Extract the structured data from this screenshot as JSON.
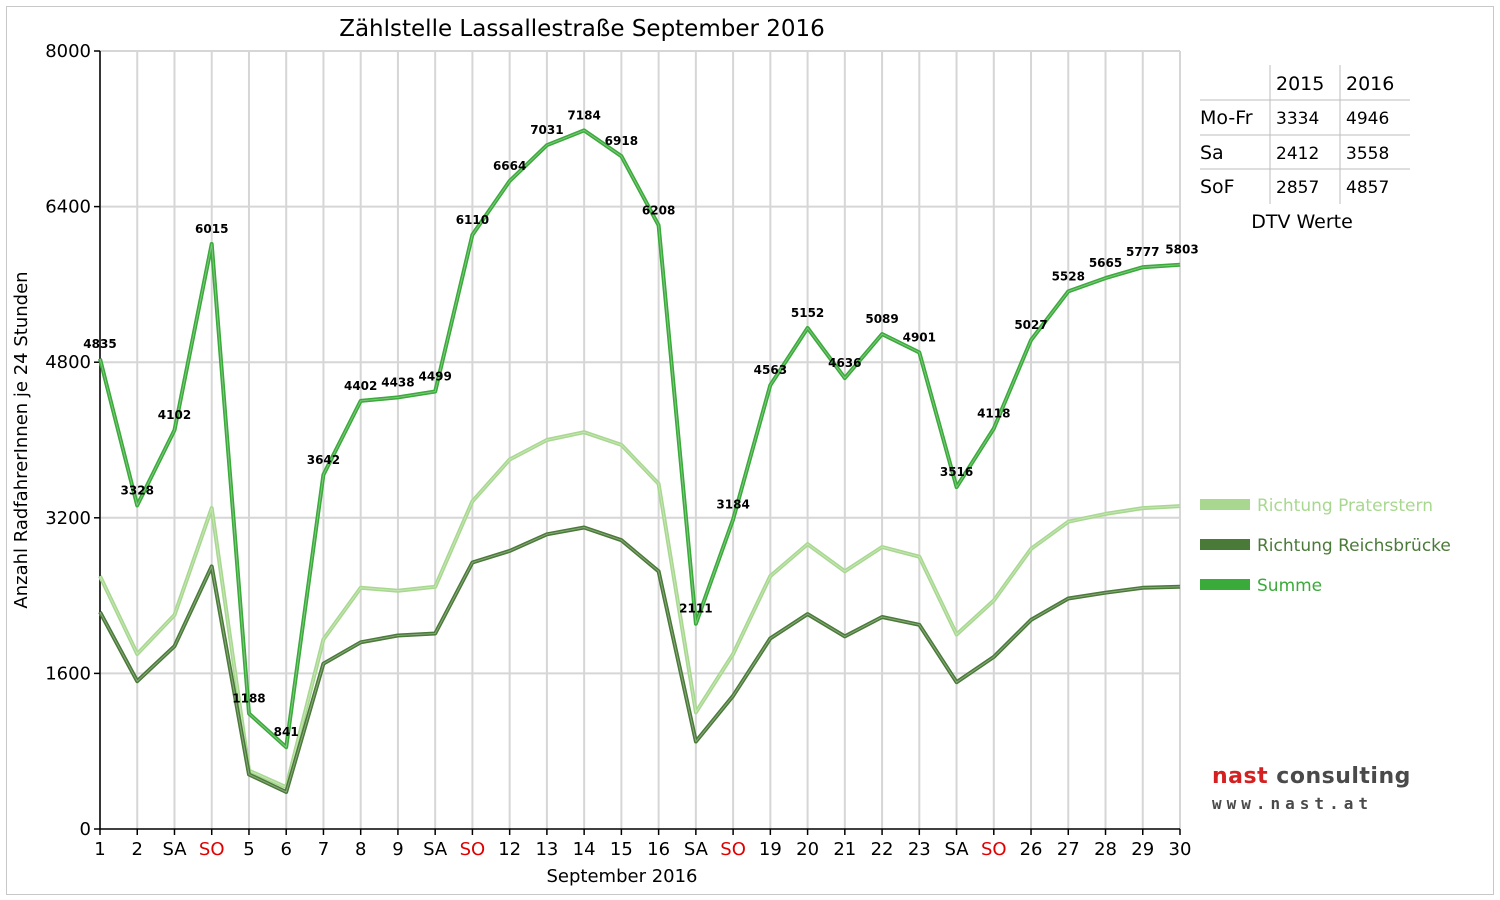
{
  "chart_data": {
    "type": "line",
    "title": "Zählstelle Lassallestraße September 2016",
    "xlabel": "September 2016",
    "ylabel": "Anzahl RadfahrerInnen je 24 Stunden",
    "ylim": [
      0,
      8000
    ],
    "yticks": [
      0,
      1600,
      3200,
      4800,
      6400,
      8000
    ],
    "grid": true,
    "categories": [
      "1",
      "2",
      "SA",
      "SO",
      "5",
      "6",
      "7",
      "8",
      "9",
      "SA",
      "SO",
      "12",
      "13",
      "14",
      "15",
      "16",
      "SA",
      "SO",
      "19",
      "20",
      "21",
      "22",
      "23",
      "SA",
      "SO",
      "26",
      "27",
      "28",
      "29",
      "30"
    ],
    "category_colors": [
      "#000000",
      "#000000",
      "#000000",
      "#e00000",
      "#000000",
      "#000000",
      "#000000",
      "#000000",
      "#000000",
      "#000000",
      "#e00000",
      "#000000",
      "#000000",
      "#000000",
      "#000000",
      "#000000",
      "#000000",
      "#e00000",
      "#000000",
      "#000000",
      "#000000",
      "#000000",
      "#000000",
      "#000000",
      "#e00000",
      "#000000",
      "#000000",
      "#000000",
      "#000000",
      "#000000"
    ],
    "series": [
      {
        "name": "Richtung Praterstern",
        "color": "#a8d890",
        "values": [
          2600,
          1800,
          2200,
          3300,
          600,
          430,
          1950,
          2480,
          2450,
          2490,
          3370,
          3800,
          4000,
          4080,
          3950,
          3550,
          1200,
          1800,
          2600,
          2930,
          2650,
          2900,
          2800,
          2000,
          2350,
          2880,
          3160,
          3240,
          3300,
          3320
        ]
      },
      {
        "name": "Richtung Reichsbrücke",
        "color": "#4a7a38",
        "values": [
          2230,
          1520,
          1880,
          2700,
          560,
          380,
          1700,
          1920,
          1990,
          2010,
          2740,
          2860,
          3030,
          3100,
          2970,
          2650,
          900,
          1370,
          1960,
          2210,
          1980,
          2180,
          2100,
          1510,
          1770,
          2150,
          2370,
          2430,
          2480,
          2490
        ]
      },
      {
        "name": "Summe",
        "color": "#3aaa3a",
        "values": [
          4835,
          3328,
          4102,
          6015,
          1188,
          841,
          3642,
          4402,
          4438,
          4499,
          6110,
          6664,
          7031,
          7184,
          6918,
          6208,
          2111,
          3184,
          4563,
          5152,
          4636,
          5089,
          4901,
          3516,
          4118,
          5027,
          5528,
          5665,
          5777,
          5803
        ]
      }
    ],
    "data_labels": [
      "4835",
      "3328",
      "4102",
      "6015",
      "1188",
      "841",
      "3642",
      "4402",
      "4438",
      "4499",
      "6110",
      "6664",
      "7031",
      "7184",
      "6918",
      "6208",
      "2111",
      "3184",
      "4563",
      "5152",
      "4636",
      "5089",
      "4901",
      "3516",
      "4118",
      "5027",
      "5528",
      "5665",
      "5777",
      "5803"
    ],
    "legend_position": "right"
  },
  "dtv_table": {
    "header": [
      "",
      "2015",
      "2016"
    ],
    "rows": [
      [
        "Mo-Fr",
        "3334",
        "4946"
      ],
      [
        "Sa",
        "2412",
        "3558"
      ],
      [
        "SoF",
        "2857",
        "4857"
      ]
    ],
    "caption": "DTV Werte"
  },
  "logo": {
    "line1_a": "nast",
    "line1_b": "consulting",
    "line2": "www.nast.at"
  }
}
